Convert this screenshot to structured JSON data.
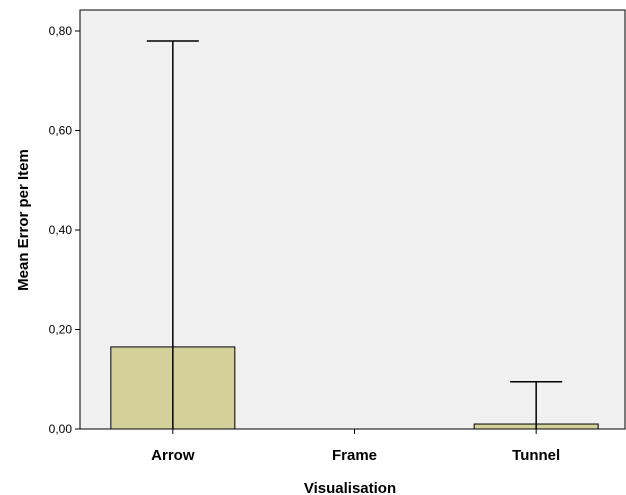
{
  "chart_data": {
    "type": "bar",
    "title": "",
    "xlabel": "Visualisation",
    "ylabel": "Mean Error per Item",
    "categories": [
      "Arrow",
      "Frame",
      "Tunnel"
    ],
    "values": [
      0.165,
      0.0,
      0.01
    ],
    "error_upper": [
      0.78,
      0.0,
      0.095
    ],
    "error_lower": [
      0.0,
      0.0,
      0.0
    ],
    "ylim": [
      0,
      0.8
    ],
    "yticks": [
      0,
      0.2,
      0.4,
      0.6,
      0.8
    ],
    "ytick_labels": [
      "0,00",
      "0,20",
      "0,40",
      "0,60",
      "0,80"
    ],
    "grid": false,
    "colors": {
      "plot_background": "#f0f0f0",
      "bar_fill": "#d4d09a",
      "bar_stroke": "#000000",
      "axis": "#000000"
    }
  }
}
